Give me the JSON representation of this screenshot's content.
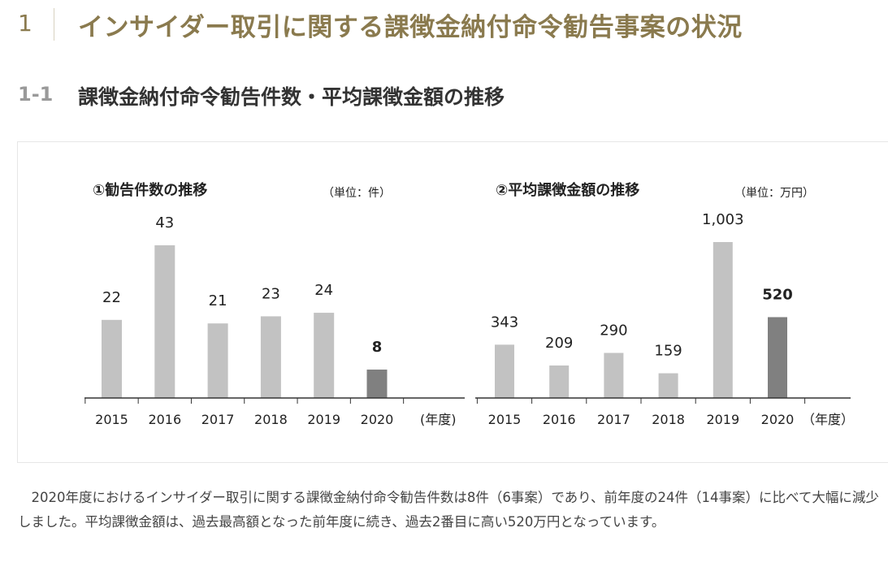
{
  "heading1": {
    "number": "1",
    "title": "インサイダー取引に関する課徴金納付命令勧告事案の状況"
  },
  "heading2": {
    "number": "1-1",
    "title": "課徴金納付命令勧告件数・平均課徴金額の推移"
  },
  "colors": {
    "accent": "#8a7a4e",
    "bar": "#c2c2c2",
    "bar_highlight": "#808080",
    "axis": "#333333"
  },
  "chart_data": [
    {
      "type": "bar",
      "title": "①勧告件数の推移",
      "unit": "（単位：件）",
      "xlabel": "(年度)",
      "categories": [
        "2015",
        "2016",
        "2017",
        "2018",
        "2019",
        "2020"
      ],
      "values": [
        22,
        43,
        21,
        23,
        24,
        8
      ],
      "value_labels": [
        "22",
        "43",
        "21",
        "23",
        "24",
        "8"
      ],
      "highlight_index": 5,
      "ylim": [
        0,
        43
      ]
    },
    {
      "type": "bar",
      "title": "②平均課徴金額の推移",
      "unit": "（単位：万円）",
      "xlabel": "（年度）",
      "categories": [
        "2015",
        "2016",
        "2017",
        "2018",
        "2019",
        "2020"
      ],
      "values": [
        343,
        209,
        290,
        159,
        1003,
        520
      ],
      "value_labels": [
        "343",
        "209",
        "290",
        "159",
        "1,003",
        "520"
      ],
      "highlight_index": 5,
      "ylim": [
        0,
        1003
      ]
    }
  ],
  "body_text": "2020年度におけるインサイダー取引に関する課徴金納付命令勧告件数は8件（6事案）であり、前年度の24件（14事案）に比べて大幅に減少しました。平均課徴金額は、過去最高額となった前年度に続き、過去2番目に高い520万円となっています。"
}
